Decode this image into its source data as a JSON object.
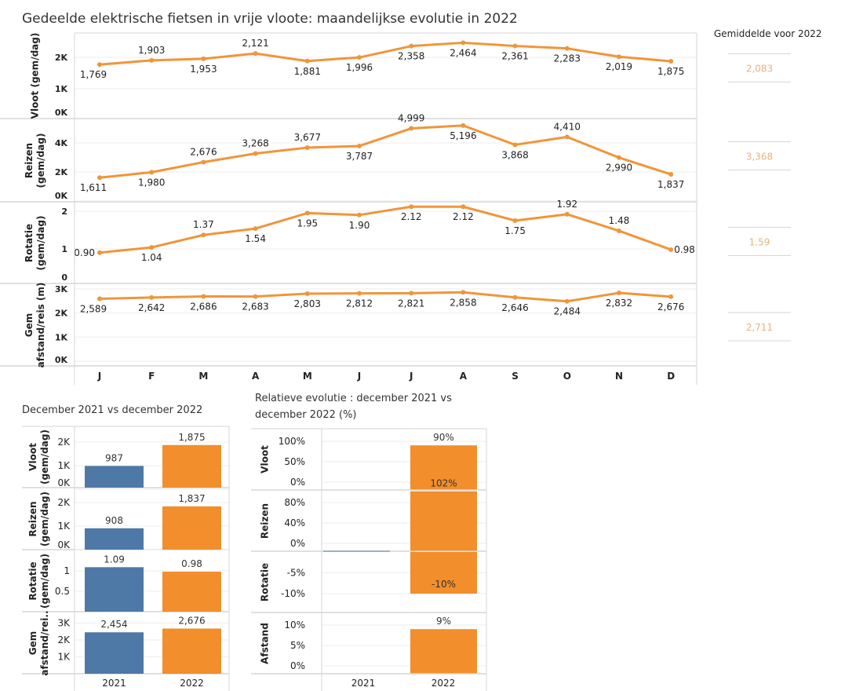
{
  "title": "Gedeelde elektrische fietsen in vrije vloote: maandelijkse evolutie in 2022",
  "average_title": "Gemiddelde voor 2022",
  "colors": {
    "orange": "#f28e2b",
    "line_orange": "#f0953a",
    "blue": "#4e79a7",
    "average_text": "#e8b27a",
    "grid": "#eeeeee",
    "divider": "#d6d6d6"
  },
  "chart_data": [
    {
      "type": "line",
      "categories": [
        "J",
        "F",
        "M",
        "A",
        "M",
        "J",
        "J",
        "A",
        "S",
        "O",
        "N",
        "D"
      ],
      "series": [
        {
          "axis_label": [
            "Vloot (gem/dag)"
          ],
          "values": [
            1769,
            1903,
            1953,
            2121,
            1881,
            1996,
            2358,
            2464,
            2361,
            2283,
            2019,
            1875
          ],
          "labels": [
            "1,769",
            "1,903",
            "1,953",
            "2,121",
            "1,881",
            "1,996",
            "2,358",
            "2,464",
            "2,361",
            "2,283",
            "2,019",
            "1,875"
          ],
          "ticks": [
            0,
            1000,
            2000
          ],
          "tick_labels": [
            "0K",
            "1K",
            "2K"
          ],
          "average": "2,083"
        },
        {
          "axis_label": [
            "Reizen",
            "(gem/dag)"
          ],
          "values": [
            1611,
            1980,
            2676,
            3268,
            3677,
            3787,
            4999,
            5196,
            3868,
            4410,
            2990,
            1837
          ],
          "labels": [
            "1,611",
            "1,980",
            "2,676",
            "3,268",
            "3,677",
            "3,787",
            "4,999",
            "5,196",
            "3,868",
            "4,410",
            "2,990",
            "1,837"
          ],
          "ticks": [
            0,
            2000,
            4000
          ],
          "tick_labels": [
            "0K",
            "2K",
            "4K"
          ],
          "average": "3,368"
        },
        {
          "axis_label": [
            "Rotatie",
            "(gem/dag)"
          ],
          "values": [
            0.9,
            1.04,
            1.37,
            1.54,
            1.95,
            1.9,
            2.12,
            2.12,
            1.75,
            1.92,
            1.48,
            0.98
          ],
          "labels": [
            "0.90",
            "1.04",
            "1.37",
            "1.54",
            "1.95",
            "1.90",
            "2.12",
            "2.12",
            "1.75",
            "1.92",
            "1.48",
            "0.98"
          ],
          "ticks": [
            0,
            1,
            2
          ],
          "tick_labels": [
            "0",
            "1",
            "2"
          ],
          "average": "1.59"
        },
        {
          "axis_label": [
            "Gem",
            "afstand/reis (m)"
          ],
          "values": [
            2589,
            2642,
            2686,
            2683,
            2803,
            2812,
            2821,
            2858,
            2646,
            2484,
            2832,
            2676
          ],
          "labels": [
            "2,589",
            "2,642",
            "2,686",
            "2,683",
            "2,803",
            "2,812",
            "2,821",
            "2,858",
            "2,646",
            "2,484",
            "2,832",
            "2,676"
          ],
          "ticks": [
            0,
            1000,
            2000,
            3000
          ],
          "tick_labels": [
            "0K",
            "1K",
            "2K",
            "3K"
          ],
          "average": "2,711"
        }
      ]
    },
    {
      "type": "bar",
      "title": "December 2021 vs december 2022",
      "categories": [
        "2021",
        "2022"
      ],
      "panels": [
        {
          "axis_label": [
            "Vloot",
            "(gem/dag)"
          ],
          "values": [
            987,
            1875
          ],
          "labels": [
            "987",
            "1,875"
          ],
          "ticks": [
            0,
            1000,
            2000
          ],
          "tick_labels": [
            "0K",
            "1K",
            "2K"
          ]
        },
        {
          "axis_label": [
            "Reizen",
            "(gem/dag)"
          ],
          "values": [
            908,
            1837
          ],
          "labels": [
            "908",
            "1,837"
          ],
          "ticks": [
            0,
            1000,
            2000
          ],
          "tick_labels": [
            "0K",
            "1K",
            "2K"
          ]
        },
        {
          "axis_label": [
            "Rotatie",
            "(gem/dag)"
          ],
          "values": [
            1.09,
            0.98
          ],
          "labels": [
            "1.09",
            "0.98"
          ],
          "ticks": [
            0.5,
            1
          ],
          "tick_labels": [
            "0.5",
            "1"
          ]
        },
        {
          "axis_label": [
            "Gem",
            "afstand/rei.."
          ],
          "values": [
            2454,
            2676
          ],
          "labels": [
            "2,454",
            "2,676"
          ],
          "ticks": [
            1000,
            2000,
            3000
          ],
          "tick_labels": [
            "1K",
            "2K",
            "3K"
          ]
        }
      ]
    },
    {
      "type": "bar",
      "title": "Relatieve evolutie : december 2021 vs december 2022 (%)",
      "categories": [
        "2021",
        "2022"
      ],
      "panels": [
        {
          "axis_label": [
            "Vloot"
          ],
          "value": 90,
          "label": "90%",
          "ticks": [
            0,
            50,
            100
          ],
          "tick_labels": [
            "0%",
            "50%",
            "100%"
          ]
        },
        {
          "axis_label": [
            "Reizen"
          ],
          "value": 102,
          "label": "102%",
          "ticks": [
            0,
            40,
            80
          ],
          "tick_labels": [
            "0%",
            "40%",
            "80%"
          ]
        },
        {
          "axis_label": [
            "Rotatie"
          ],
          "value": -10,
          "label": "-10%",
          "ticks": [
            -10,
            -5
          ],
          "tick_labels": [
            "-10%",
            "-5%"
          ]
        },
        {
          "axis_label": [
            "Afstand"
          ],
          "value": 9,
          "label": "9%",
          "ticks": [
            0,
            5,
            10
          ],
          "tick_labels": [
            "0%",
            "5%",
            "10%"
          ]
        }
      ]
    }
  ]
}
